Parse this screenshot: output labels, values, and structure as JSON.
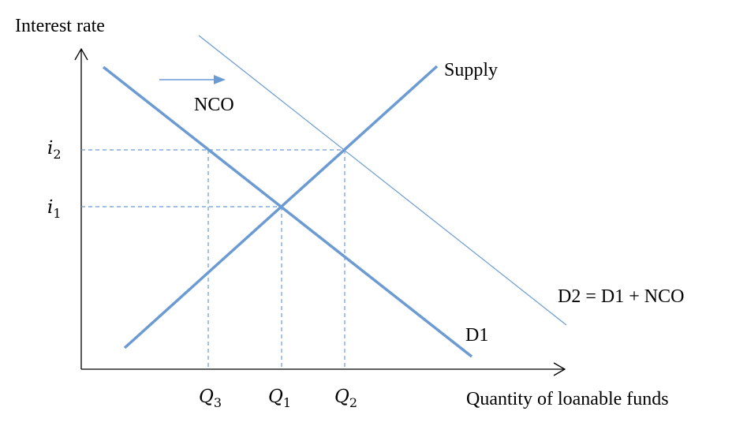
{
  "axes": {
    "y_label": "Interest rate",
    "x_label": "Quantity of loanable funds"
  },
  "curves": {
    "supply_label": "Supply",
    "d1_label": "D1",
    "d2_label": "D2 = D1 + NCO"
  },
  "shift": {
    "label": "NCO"
  },
  "y_ticks": [
    {
      "base": "i",
      "sub": "2"
    },
    {
      "base": "i",
      "sub": "1"
    }
  ],
  "x_ticks": [
    {
      "base": "Q",
      "sub": "3"
    },
    {
      "base": "Q",
      "sub": "1"
    },
    {
      "base": "Q",
      "sub": "2"
    }
  ],
  "colors": {
    "curve": "#6b9bd2",
    "guide": "#6b9bd2",
    "axis": "#000000"
  }
}
